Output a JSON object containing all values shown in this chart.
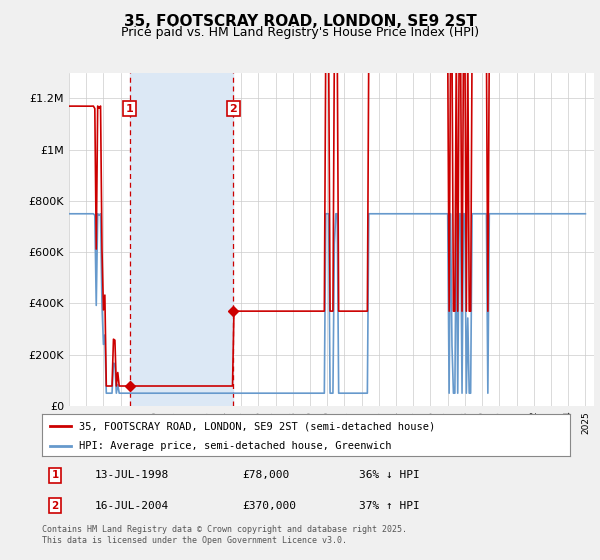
{
  "title": "35, FOOTSCRAY ROAD, LONDON, SE9 2ST",
  "subtitle": "Price paid vs. HM Land Registry's House Price Index (HPI)",
  "title_fontsize": 11,
  "subtitle_fontsize": 9,
  "ylabel_ticks": [
    "£0",
    "£200K",
    "£400K",
    "£600K",
    "£800K",
    "£1M",
    "£1.2M"
  ],
  "ytick_values": [
    0,
    200000,
    400000,
    600000,
    800000,
    1000000,
    1200000
  ],
  "ylim": [
    0,
    1300000
  ],
  "xlim_start": 1995.0,
  "xlim_end": 2025.5,
  "sale1_year": 1998.53,
  "sale1_price": 78000,
  "sale2_year": 2004.54,
  "sale2_price": 370000,
  "sale_color": "#cc0000",
  "hpi_color": "#6699cc",
  "shade_color": "#dce8f5",
  "legend_line1": "35, FOOTSCRAY ROAD, LONDON, SE9 2ST (semi-detached house)",
  "legend_line2": "HPI: Average price, semi-detached house, Greenwich",
  "annotation1_label": "1",
  "annotation1_date": "13-JUL-1998",
  "annotation1_price": "£78,000",
  "annotation1_hpi": "36% ↓ HPI",
  "annotation2_label": "2",
  "annotation2_date": "16-JUL-2004",
  "annotation2_price": "£370,000",
  "annotation2_hpi": "37% ↑ HPI",
  "footnote": "Contains HM Land Registry data © Crown copyright and database right 2025.\nThis data is licensed under the Open Government Licence v3.0.",
  "bg_color": "#f0f0f0",
  "plot_bg_color": "#ffffff"
}
